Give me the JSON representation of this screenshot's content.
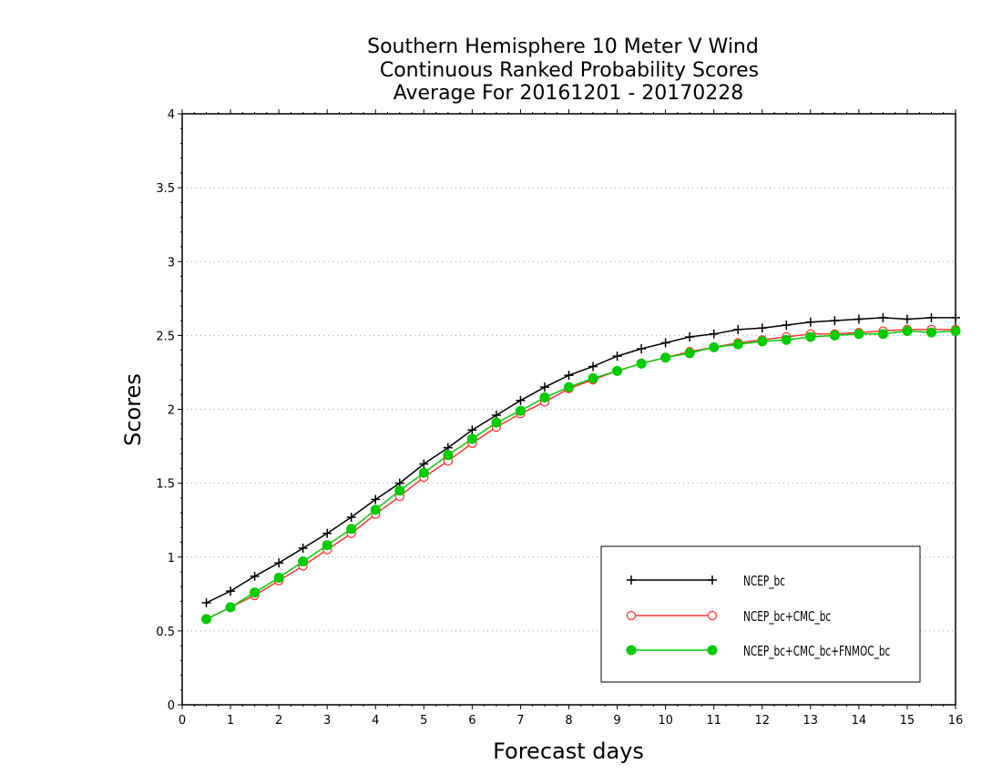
{
  "chart_data": {
    "type": "line",
    "title_lines": [
      "Southern Hemisphere 10 Meter V Wind",
      "Continuous Ranked Probability Scores",
      "Average For 20161201 - 20170228"
    ],
    "xlabel": "Forecast days",
    "ylabel": "Scores",
    "xlim": [
      0,
      16
    ],
    "ylim": [
      0,
      4
    ],
    "xticks": [
      "0",
      "1",
      "2",
      "3",
      "4",
      "5",
      "6",
      "7",
      "8",
      "9",
      "10",
      "11",
      "12",
      "13",
      "14",
      "15",
      "16"
    ],
    "yticks": [
      "0",
      "0.5",
      "1",
      "1.5",
      "2",
      "2.5",
      "3",
      "3.5",
      "4"
    ],
    "grid": "horizontal dotted",
    "legend_position": "bottom-right",
    "x": [
      0.5,
      1,
      1.5,
      2,
      2.5,
      3,
      3.5,
      4,
      4.5,
      5,
      5.5,
      6,
      6.5,
      7,
      7.5,
      8,
      8.5,
      9,
      9.5,
      10,
      10.5,
      11,
      11.5,
      12,
      12.5,
      13,
      13.5,
      14,
      14.5,
      15,
      15.5,
      16
    ],
    "series": [
      {
        "name": "NCEP_bc",
        "color": "#000000",
        "marker": "plus",
        "values": [
          0.69,
          0.77,
          0.87,
          0.96,
          1.06,
          1.16,
          1.27,
          1.39,
          1.5,
          1.63,
          1.74,
          1.86,
          1.96,
          2.06,
          2.15,
          2.23,
          2.29,
          2.36,
          2.41,
          2.45,
          2.49,
          2.51,
          2.54,
          2.55,
          2.57,
          2.59,
          2.6,
          2.61,
          2.62,
          2.61,
          2.62,
          2.62
        ]
      },
      {
        "name": "NCEP_bc+CMC_bc",
        "color": "#ff3333",
        "marker": "circle-open",
        "values": [
          0.58,
          0.66,
          0.74,
          0.84,
          0.94,
          1.05,
          1.16,
          1.29,
          1.41,
          1.54,
          1.65,
          1.77,
          1.88,
          1.97,
          2.05,
          2.14,
          2.2,
          2.26,
          2.31,
          2.35,
          2.39,
          2.42,
          2.45,
          2.47,
          2.49,
          2.51,
          2.51,
          2.52,
          2.53,
          2.54,
          2.54,
          2.54
        ]
      },
      {
        "name": "NCEP_bc+CMC_bc+FNMOC_bc",
        "color": "#00cc00",
        "marker": "circle-filled",
        "values": [
          0.58,
          0.66,
          0.76,
          0.86,
          0.97,
          1.08,
          1.19,
          1.32,
          1.45,
          1.57,
          1.69,
          1.8,
          1.91,
          1.99,
          2.08,
          2.15,
          2.21,
          2.26,
          2.31,
          2.35,
          2.38,
          2.42,
          2.44,
          2.46,
          2.47,
          2.49,
          2.5,
          2.51,
          2.51,
          2.53,
          2.52,
          2.53
        ]
      }
    ]
  }
}
